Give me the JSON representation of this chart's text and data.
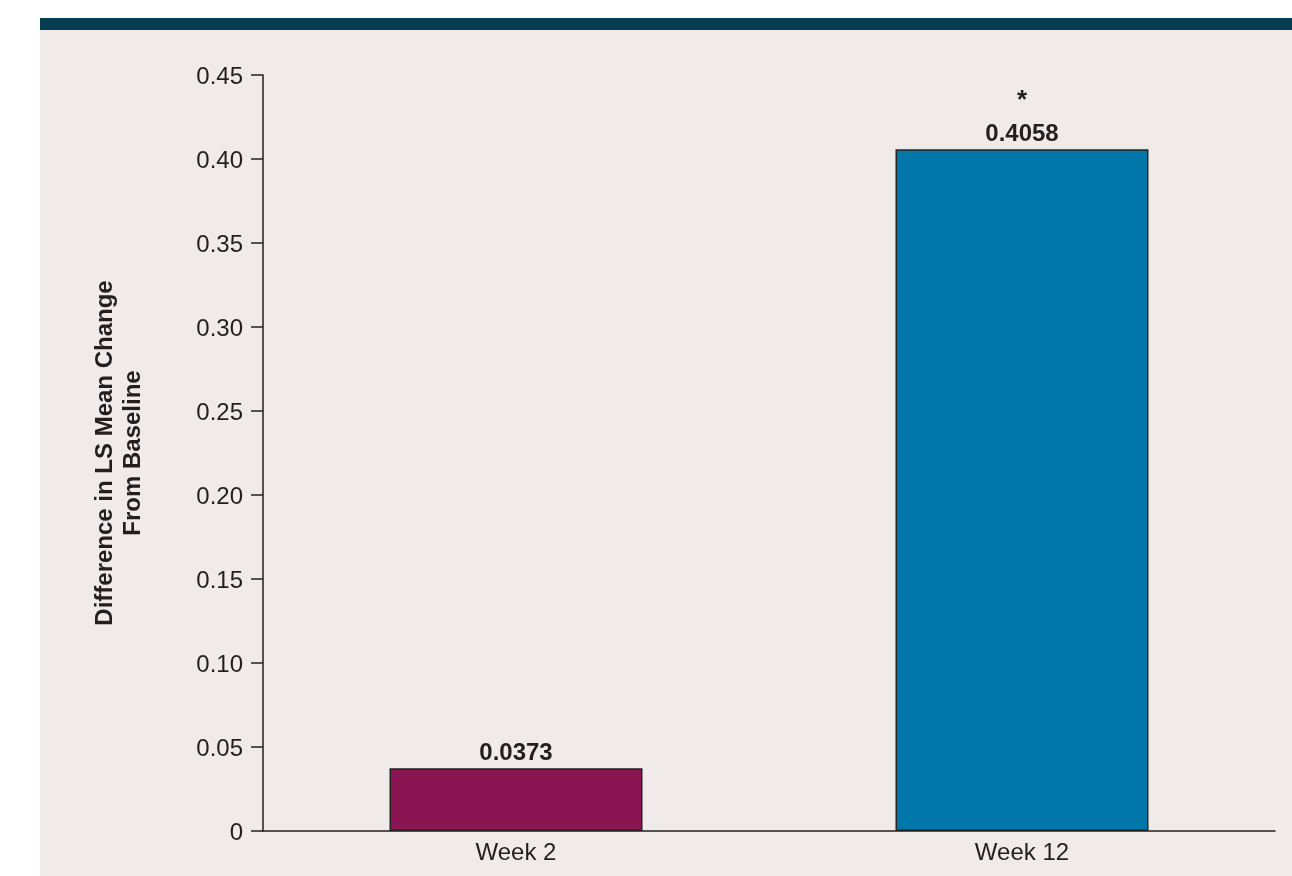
{
  "chart_data": {
    "type": "bar",
    "ylabel": "Difference in LS Mean Change\nFrom Baseline",
    "categories": [
      "Week 2",
      "Week 12"
    ],
    "values": [
      0.0373,
      0.4058
    ],
    "colors": [
      "#8b1452",
      "#0077a8"
    ],
    "ylim": [
      0,
      0.45
    ],
    "yticks": [
      {
        "value": 0,
        "label": "0"
      },
      {
        "value": 0.05,
        "label": "0.05"
      },
      {
        "value": 0.1,
        "label": "0.10"
      },
      {
        "value": 0.15,
        "label": "0.15"
      },
      {
        "value": 0.2,
        "label": "0.20"
      },
      {
        "value": 0.25,
        "label": "0.25"
      },
      {
        "value": 0.3,
        "label": "0.30"
      },
      {
        "value": 0.35,
        "label": "0.35"
      },
      {
        "value": 0.4,
        "label": "0.40"
      },
      {
        "value": 0.45,
        "label": "0.45"
      }
    ],
    "data_labels": true,
    "grid": false,
    "annotations": [
      {
        "text": "*",
        "x": "Week 12",
        "y": 0.4058
      }
    ]
  }
}
